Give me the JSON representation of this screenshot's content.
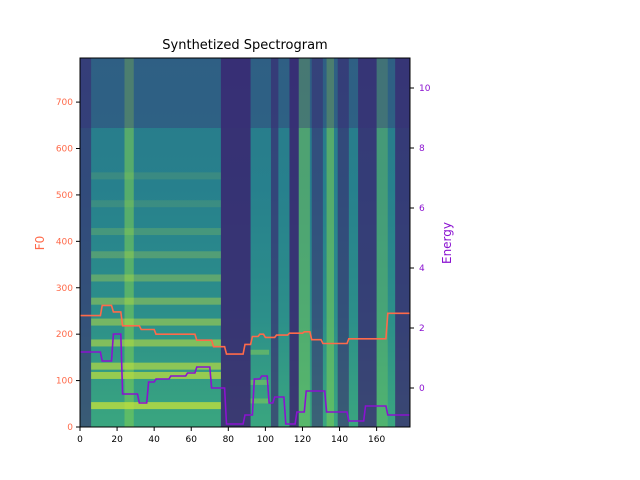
{
  "chart_data": {
    "type": "line",
    "title": "Synthetized Spectrogram",
    "background": "spectrogram-heatmap",
    "x_ticks": [
      0,
      20,
      40,
      60,
      80,
      100,
      120,
      140,
      160
    ],
    "xlim": [
      0,
      178
    ],
    "left_axis": {
      "label": "F0",
      "color": "#ff6a4a",
      "ylim": [
        0,
        795
      ],
      "ticks": [
        0,
        100,
        200,
        300,
        400,
        500,
        600,
        700
      ]
    },
    "right_axis": {
      "label": "Energy",
      "color": "#8a12d0",
      "ylim": [
        -1.3,
        11.0
      ],
      "ticks": [
        0,
        2,
        4,
        6,
        8,
        10
      ]
    },
    "series": [
      {
        "name": "F0",
        "axis": "left",
        "color": "#ff6a4a",
        "x": [
          0,
          11,
          12,
          17,
          18,
          22,
          23,
          32,
          33,
          40,
          41,
          62,
          63,
          71,
          72,
          78,
          79,
          88,
          89,
          92,
          93,
          96,
          97,
          99,
          100,
          105,
          106,
          112,
          113,
          120,
          121,
          124,
          125,
          130,
          131,
          144,
          145,
          165,
          166,
          178
        ],
        "y": [
          240,
          240,
          262,
          262,
          248,
          248,
          218,
          218,
          210,
          210,
          200,
          200,
          187,
          187,
          173,
          173,
          157,
          157,
          178,
          178,
          195,
          195,
          200,
          200,
          193,
          193,
          198,
          198,
          202,
          202,
          205,
          205,
          188,
          188,
          180,
          180,
          190,
          190,
          245,
          245
        ]
      },
      {
        "name": "Energy",
        "axis": "right",
        "color": "#8a12d0",
        "x": [
          0,
          11,
          12,
          17,
          18,
          22,
          23,
          31,
          32,
          36,
          37,
          40,
          41,
          48,
          49,
          57,
          58,
          62,
          63,
          70,
          71,
          78,
          79,
          88,
          89,
          93,
          94,
          97,
          98,
          101,
          102,
          104,
          105,
          110,
          111,
          116,
          117,
          121,
          122,
          132,
          133,
          144,
          145,
          153,
          154,
          165,
          166,
          178
        ],
        "y": [
          1.2,
          1.2,
          0.9,
          0.9,
          1.8,
          1.8,
          -0.2,
          -0.2,
          -0.5,
          -0.5,
          0.2,
          0.2,
          0.3,
          0.3,
          0.4,
          0.4,
          0.5,
          0.5,
          0.7,
          0.7,
          0.0,
          0.0,
          -1.2,
          -1.2,
          -0.9,
          -0.9,
          0.3,
          0.3,
          0.4,
          0.4,
          -0.5,
          -0.5,
          -0.3,
          -0.3,
          -1.2,
          -1.2,
          -0.8,
          -0.8,
          -0.1,
          -0.1,
          -0.8,
          -0.8,
          -1.1,
          -1.1,
          -0.6,
          -0.6,
          -0.9,
          -0.9
        ]
      }
    ]
  }
}
